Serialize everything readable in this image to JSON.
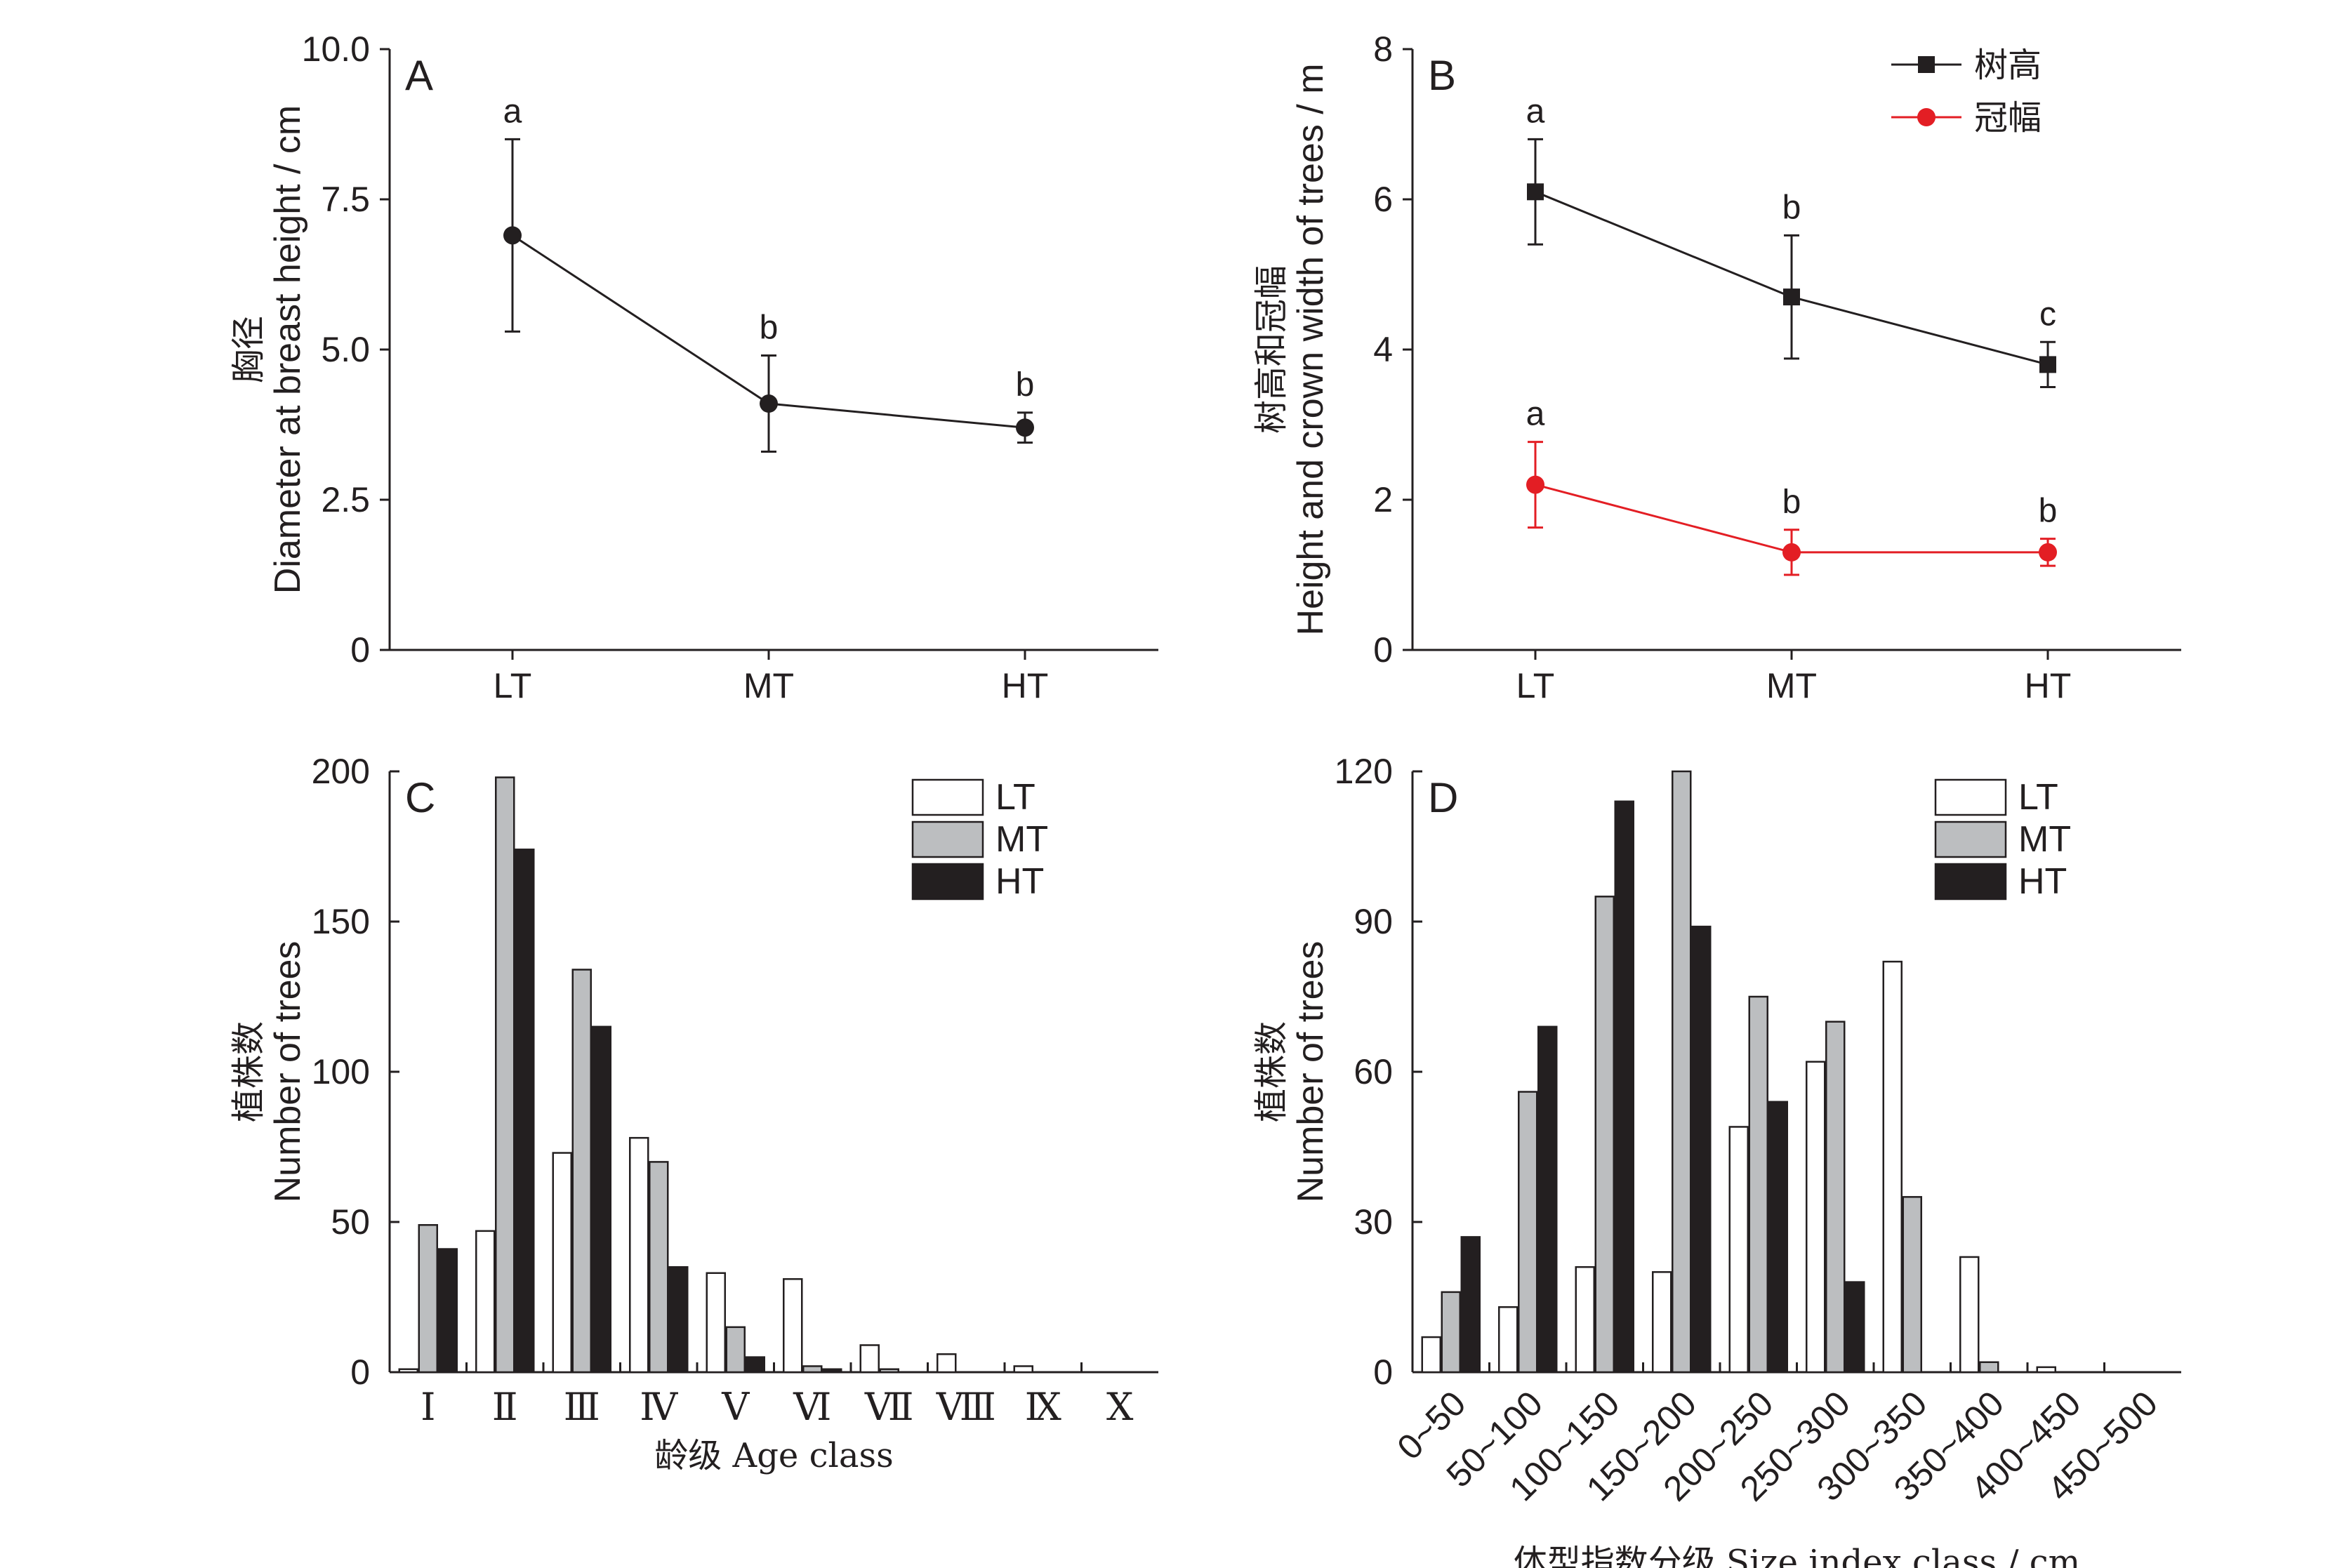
{
  "charts": [
    {
      "id": "A",
      "type": "line",
      "panel_label": "A",
      "ylabel_cn": "胸径",
      "ylabel_en": "Diameter at breast height / cm",
      "categories": [
        "LT",
        "MT",
        "HT"
      ],
      "yticks": [
        "0",
        "2.5",
        "5.0",
        "7.5",
        "10.0"
      ],
      "ylim": [
        0,
        10
      ],
      "series": [
        {
          "values": [
            6.9,
            4.1,
            3.7
          ],
          "err": [
            1.6,
            0.8,
            0.25
          ],
          "letters": [
            "a",
            "b",
            "b"
          ],
          "color": "#231f20",
          "marker": "circle"
        }
      ]
    },
    {
      "id": "B",
      "type": "line",
      "panel_label": "B",
      "ylabel_cn": "树高和冠幅",
      "ylabel_en": "Height and crown width of trees / m",
      "categories": [
        "LT",
        "MT",
        "HT"
      ],
      "yticks": [
        "0",
        "2",
        "4",
        "6",
        "8"
      ],
      "ylim": [
        0,
        8
      ],
      "legend_position": "top-right",
      "series": [
        {
          "name": "树高",
          "values": [
            6.1,
            4.7,
            3.8
          ],
          "err": [
            0.7,
            0.82,
            0.3
          ],
          "letters": [
            "a",
            "b",
            "c"
          ],
          "color": "#231f20",
          "marker": "square"
        },
        {
          "name": "冠幅",
          "values": [
            2.2,
            1.3,
            1.3
          ],
          "err": [
            0.57,
            0.3,
            0.18
          ],
          "letters": [
            "a",
            "b",
            "b"
          ],
          "color": "#e31e24",
          "marker": "circle"
        }
      ]
    },
    {
      "id": "C",
      "type": "bar",
      "panel_label": "C",
      "ylabel_cn": "植株数",
      "ylabel_en": "Number of trees",
      "xlabel": "龄级 Age class",
      "categories": [
        "Ⅰ",
        "Ⅱ",
        "Ⅲ",
        "Ⅳ",
        "Ⅴ",
        "Ⅵ",
        "Ⅶ",
        "Ⅷ",
        "Ⅸ",
        "Ⅹ"
      ],
      "yticks": [
        "0",
        "50",
        "100",
        "150",
        "200"
      ],
      "ylim": [
        0,
        200
      ],
      "legend_position": "top-right",
      "series": [
        {
          "name": "LT",
          "values": [
            1,
            47,
            73,
            78,
            33,
            31,
            9,
            6,
            2,
            0
          ],
          "color": "#ffffff"
        },
        {
          "name": "MT",
          "values": [
            49,
            198,
            134,
            70,
            15,
            2,
            1,
            0,
            0,
            0
          ],
          "color": "#bcbec0"
        },
        {
          "name": "HT",
          "values": [
            41,
            174,
            115,
            35,
            5,
            1,
            0,
            0,
            0,
            0
          ],
          "color": "#231f20"
        }
      ]
    },
    {
      "id": "D",
      "type": "bar",
      "panel_label": "D",
      "ylabel_cn": "植株数",
      "ylabel_en": "Number of trees",
      "xlabel": "体型指数分级 Size index class / cm",
      "categories": [
        "0~50",
        "50~100",
        "100~150",
        "150~200",
        "200~250",
        "250~300",
        "300~350",
        "350~400",
        "400~450",
        "450~500"
      ],
      "yticks": [
        "0",
        "30",
        "60",
        "90",
        "120"
      ],
      "ylim": [
        0,
        120
      ],
      "legend_position": "top-right",
      "series": [
        {
          "name": "LT",
          "values": [
            7,
            13,
            21,
            20,
            49,
            62,
            82,
            23,
            1,
            0
          ],
          "color": "#ffffff"
        },
        {
          "name": "MT",
          "values": [
            16,
            56,
            95,
            120,
            75,
            70,
            35,
            2,
            0,
            0
          ],
          "color": "#bcbec0"
        },
        {
          "name": "HT",
          "values": [
            27,
            69,
            114,
            89,
            54,
            18,
            0,
            0,
            0,
            0
          ],
          "color": "#231f20"
        }
      ]
    }
  ]
}
